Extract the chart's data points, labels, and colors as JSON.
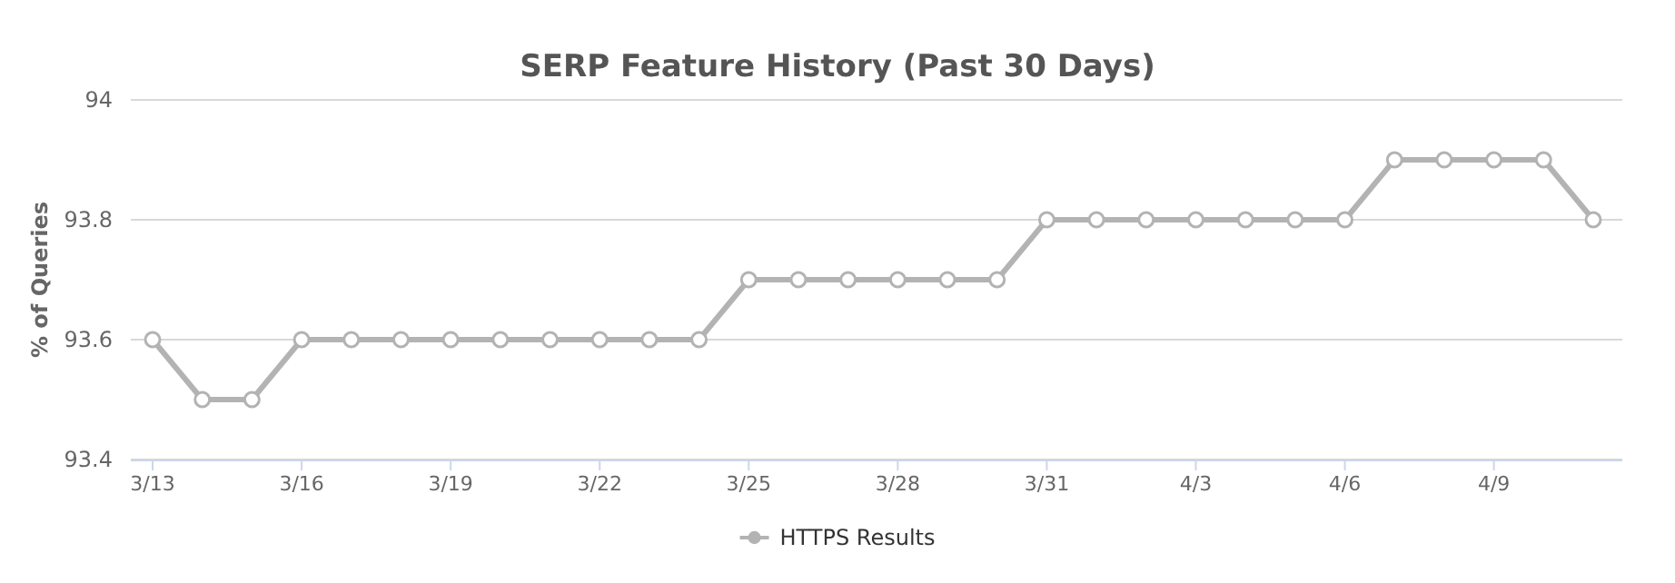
{
  "chart_data": {
    "type": "line",
    "title": "SERP Feature History (Past 30 Days)",
    "ylabel": "% of Queries",
    "categories": [
      "3/13",
      null,
      null,
      "3/16",
      null,
      null,
      "3/19",
      null,
      null,
      "3/22",
      null,
      null,
      "3/25",
      null,
      null,
      "3/28",
      null,
      null,
      "3/31",
      null,
      null,
      "4/3",
      null,
      null,
      "4/6",
      null,
      null,
      "4/9",
      null,
      null
    ],
    "series": [
      {
        "name": "HTTPS Results",
        "color": "#b3b3b3",
        "values": [
          93.6,
          93.5,
          93.5,
          93.6,
          93.6,
          93.6,
          93.6,
          93.6,
          93.6,
          93.6,
          93.6,
          93.6,
          93.7,
          93.7,
          93.7,
          93.7,
          93.7,
          93.7,
          93.8,
          93.8,
          93.8,
          93.8,
          93.8,
          93.8,
          93.8,
          93.9,
          93.9,
          93.9,
          93.9,
          93.8
        ]
      }
    ],
    "ylim": [
      93.4,
      94
    ],
    "yticks": [
      93.4,
      93.6,
      93.8,
      94
    ],
    "grid": "y",
    "legend": "bottom",
    "marker": "circle",
    "line_style": "solid"
  }
}
